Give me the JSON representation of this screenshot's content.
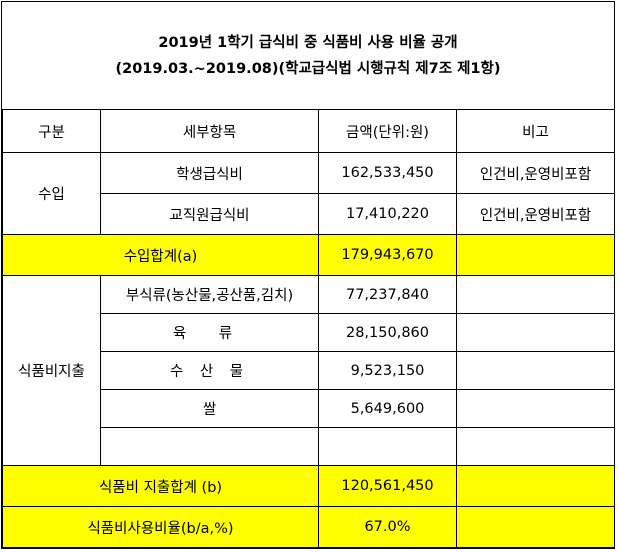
{
  "title": {
    "line1": "2019년 1학기 급식비 중 식품비 사용 비율 공개",
    "line2": "(2019.03.~2019.08)(학교급식법 시행규칙 제7조 제1항)"
  },
  "headers": {
    "category": "구분",
    "item": "세부항목",
    "amount": "금액(단위:원)",
    "note": "비고"
  },
  "income": {
    "label": "수입",
    "rows": [
      {
        "item": "학생급식비",
        "amount": "162,533,450",
        "note": "인건비,운영비포함"
      },
      {
        "item": "교직원급식비",
        "amount": "17,410,220",
        "note": "인건비,운영비포함"
      }
    ],
    "total_label": "수입합계(a)",
    "total_amount": "179,943,670"
  },
  "expense": {
    "label": "식품비지출",
    "rows": [
      {
        "item": "부식류(농산물,공산품,김치)",
        "amount": "77,237,840",
        "note": ""
      },
      {
        "item": "육 류",
        "amount": "28,150,860",
        "note": ""
      },
      {
        "item": "수 산 물",
        "amount": "9,523,150",
        "note": ""
      },
      {
        "item": "쌀",
        "amount": "5,649,600",
        "note": ""
      },
      {
        "item": "",
        "amount": "",
        "note": ""
      }
    ],
    "total_label": "식품비 지출합계 (b)",
    "total_amount": "120,561,450"
  },
  "ratio": {
    "label": "식품비사용비율(b/a,%)",
    "value": "67.0%"
  },
  "colors": {
    "highlight": "#ffff00"
  }
}
